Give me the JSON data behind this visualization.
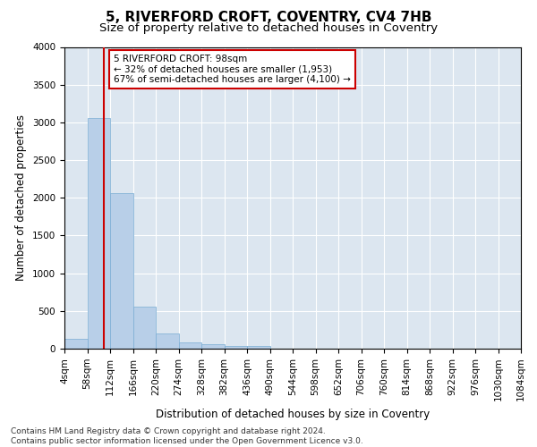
{
  "title": "5, RIVERFORD CROFT, COVENTRY, CV4 7HB",
  "subtitle": "Size of property relative to detached houses in Coventry",
  "xlabel": "Distribution of detached houses by size in Coventry",
  "ylabel": "Number of detached properties",
  "footer_line1": "Contains HM Land Registry data © Crown copyright and database right 2024.",
  "footer_line2": "Contains public sector information licensed under the Open Government Licence v3.0.",
  "bin_edges": [
    4,
    58,
    112,
    166,
    220,
    274,
    328,
    382,
    436,
    490,
    544,
    598,
    652,
    706,
    760,
    814,
    868,
    922,
    976,
    1030,
    1084
  ],
  "bar_heights": [
    130,
    3060,
    2060,
    560,
    200,
    80,
    55,
    35,
    30,
    0,
    0,
    0,
    0,
    0,
    0,
    0,
    0,
    0,
    0,
    0
  ],
  "bar_color": "#b8cfe8",
  "bar_edgecolor": "#7aadd4",
  "background_color": "#dce6f0",
  "grid_color": "#ffffff",
  "property_size": 98,
  "red_line_color": "#cc0000",
  "annotation_line1": "5 RIVERFORD CROFT: 98sqm",
  "annotation_line2": "← 32% of detached houses are smaller (1,953)",
  "annotation_line3": "67% of semi-detached houses are larger (4,100) →",
  "annotation_box_color": "#cc0000",
  "ylim": [
    0,
    4000
  ],
  "yticks": [
    0,
    500,
    1000,
    1500,
    2000,
    2500,
    3000,
    3500,
    4000
  ],
  "title_fontsize": 11,
  "subtitle_fontsize": 9.5,
  "axis_label_fontsize": 8.5,
  "tick_fontsize": 7.5,
  "annotation_fontsize": 7.5,
  "footer_fontsize": 6.5
}
